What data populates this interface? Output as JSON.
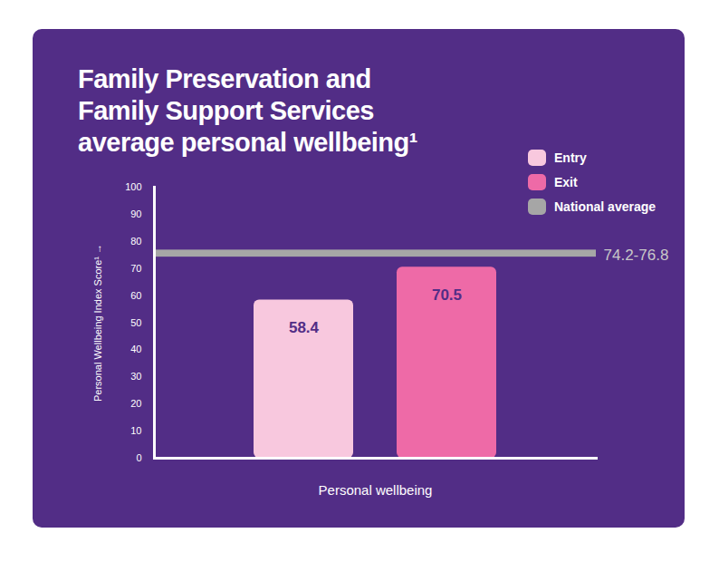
{
  "chart_data": {
    "type": "bar",
    "title": "Family Preservation and Family Support Services average personal wellbeing¹",
    "categories": [
      "Personal wellbeing"
    ],
    "series": [
      {
        "name": "Entry",
        "color": "#f8c8de",
        "values": [
          58.4
        ]
      },
      {
        "name": "Exit",
        "color": "#ee6aa7",
        "values": [
          70.5
        ]
      }
    ],
    "reference_band": {
      "name": "National average",
      "color": "#a6a6a6",
      "low": 74.2,
      "high": 76.8,
      "label": "74.2-76.8"
    },
    "y_label": "Personal Wellbeing Index Score¹",
    "ylim": [
      0,
      100
    ],
    "yticks": [
      0,
      10,
      20,
      30,
      40,
      50,
      60,
      70,
      80,
      90,
      100
    ],
    "data_labels": true,
    "legend": "top-right"
  }
}
